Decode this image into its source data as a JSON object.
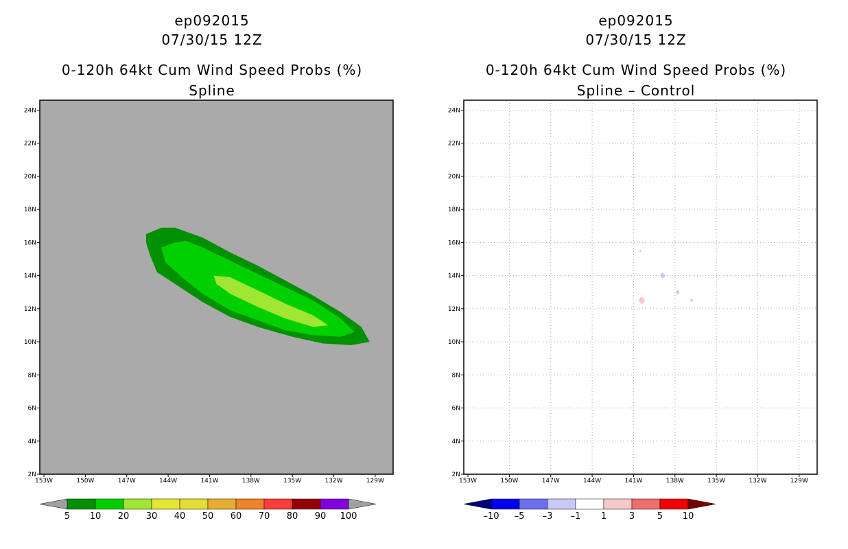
{
  "panels": [
    {
      "title": {
        "line1": "ep092015",
        "line2": "07/30/15 12Z",
        "line3": "0-120h 64kt Cum Wind Speed Probs (%)",
        "line4": "Spline"
      },
      "background": "#aaaaaa",
      "gridlines": false,
      "colorbar": {
        "labels": [
          "5",
          "10",
          "20",
          "30",
          "40",
          "50",
          "60",
          "70",
          "80",
          "90",
          "100"
        ],
        "colors": [
          "#009000",
          "#00d000",
          "#a0e632",
          "#e6e632",
          "#e6dc32",
          "#e6af2d",
          "#f08228",
          "#fa3c3c",
          "#960000",
          "#8200dc"
        ],
        "left_arrow": "#a0a0a0",
        "right_arrow": "#a0a0a0"
      }
    },
    {
      "title": {
        "line1": "ep092015",
        "line2": "07/30/15 12Z",
        "line3": "0-120h 64kt Cum Wind Speed Probs (%)",
        "line4": "Spline – Control"
      },
      "background": "#ffffff",
      "gridlines": true,
      "colorbar": {
        "labels": [
          "–10",
          "–5",
          "–3",
          "–1",
          "1",
          "3",
          "5",
          "10"
        ],
        "colors": [
          "#0000f0",
          "#6e6ef0",
          "#c8c8fa",
          "#ffffff",
          "#fac8c8",
          "#f06e6e",
          "#f00000"
        ],
        "left_arrow": "#000078",
        "right_arrow": "#780000"
      }
    }
  ],
  "chart_data": [
    {
      "type": "contour",
      "title": "0-120h 64kt Cum Wind Speed Probs (%) — Spline",
      "x_ticks": [
        "153W",
        "150W",
        "147W",
        "144W",
        "141W",
        "138W",
        "135W",
        "132W",
        "129W"
      ],
      "y_ticks": [
        "2N",
        "4N",
        "6N",
        "8N",
        "10N",
        "12N",
        "14N",
        "16N",
        "18N",
        "20N",
        "22N",
        "24N"
      ],
      "xlim": [
        -153.3,
        -127.7
      ],
      "ylim": [
        2,
        24.6
      ],
      "levels": [
        {
          "level": "5-10",
          "color": "#009000",
          "polygon_lonlat": [
            [
              -145.6,
              16.5
            ],
            [
              -144.5,
              16.9
            ],
            [
              -143.5,
              16.9
            ],
            [
              -141.5,
              16.3
            ],
            [
              -139.5,
              15.4
            ],
            [
              -137.5,
              14.6
            ],
            [
              -135.5,
              13.7
            ],
            [
              -133.5,
              12.8
            ],
            [
              -131.5,
              11.8
            ],
            [
              -130.0,
              10.9
            ],
            [
              -129.4,
              10.0
            ],
            [
              -130.7,
              9.8
            ],
            [
              -132.8,
              9.9
            ],
            [
              -135.0,
              10.3
            ],
            [
              -137.5,
              10.9
            ],
            [
              -139.5,
              11.5
            ],
            [
              -141.5,
              12.4
            ],
            [
              -143.5,
              13.5
            ],
            [
              -144.8,
              14.2
            ],
            [
              -145.3,
              15.2
            ],
            [
              -145.6,
              16.0
            ]
          ]
        },
        {
          "level": "10-20",
          "color": "#00d000",
          "polygon_lonlat": [
            [
              -144.5,
              15.7
            ],
            [
              -143.5,
              16.0
            ],
            [
              -142.7,
              16.1
            ],
            [
              -141.5,
              15.7
            ],
            [
              -139.5,
              14.9
            ],
            [
              -137.5,
              14.1
            ],
            [
              -135.5,
              13.3
            ],
            [
              -133.5,
              12.5
            ],
            [
              -131.5,
              11.4
            ],
            [
              -130.5,
              10.6
            ],
            [
              -131.5,
              10.3
            ],
            [
              -133.5,
              10.4
            ],
            [
              -135.5,
              10.7
            ],
            [
              -137.5,
              11.3
            ],
            [
              -139.5,
              11.9
            ],
            [
              -141.5,
              12.9
            ],
            [
              -143.0,
              13.9
            ],
            [
              -144.2,
              14.8
            ]
          ]
        },
        {
          "level": "20-30",
          "color": "#a0e632",
          "polygon_lonlat": [
            [
              -140.7,
              14.0
            ],
            [
              -139.5,
              13.9
            ],
            [
              -137.5,
              13.1
            ],
            [
              -135.5,
              12.3
            ],
            [
              -133.5,
              11.6
            ],
            [
              -132.4,
              11.0
            ],
            [
              -133.5,
              10.9
            ],
            [
              -135.5,
              11.4
            ],
            [
              -137.5,
              12.1
            ],
            [
              -139.5,
              12.9
            ],
            [
              -140.5,
              13.5
            ]
          ]
        }
      ]
    },
    {
      "type": "contour",
      "title": "0-120h 64kt Cum Wind Speed Probs (%) — Spline – Control",
      "x_ticks": [
        "153W",
        "150W",
        "147W",
        "144W",
        "141W",
        "138W",
        "135W",
        "132W",
        "129W"
      ],
      "y_ticks": [
        "2N",
        "4N",
        "6N",
        "8N",
        "10N",
        "12N",
        "14N",
        "16N",
        "18N",
        "20N",
        "22N",
        "24N"
      ],
      "xlim": [
        -153.3,
        -127.7
      ],
      "ylim": [
        2,
        24.6
      ],
      "features": [
        {
          "range": "1 to 3",
          "color": "#fac8c8",
          "lon": -140.4,
          "lat": 12.5,
          "r_deg": 0.2
        },
        {
          "range": "1 to 3",
          "color": "#fac8c8",
          "lon": -136.8,
          "lat": 12.5,
          "r_deg": 0.1
        },
        {
          "range": "-3 to -1",
          "color": "#c8c8fa",
          "lon": -138.9,
          "lat": 14.0,
          "r_deg": 0.15
        },
        {
          "range": "-3 to -1",
          "color": "#c8c8fa",
          "lon": -137.8,
          "lat": 13.0,
          "r_deg": 0.12
        },
        {
          "range": "-3 to -1",
          "color": "#c8c8fa",
          "lon": -140.5,
          "lat": 15.5,
          "r_deg": 0.05
        }
      ]
    }
  ]
}
